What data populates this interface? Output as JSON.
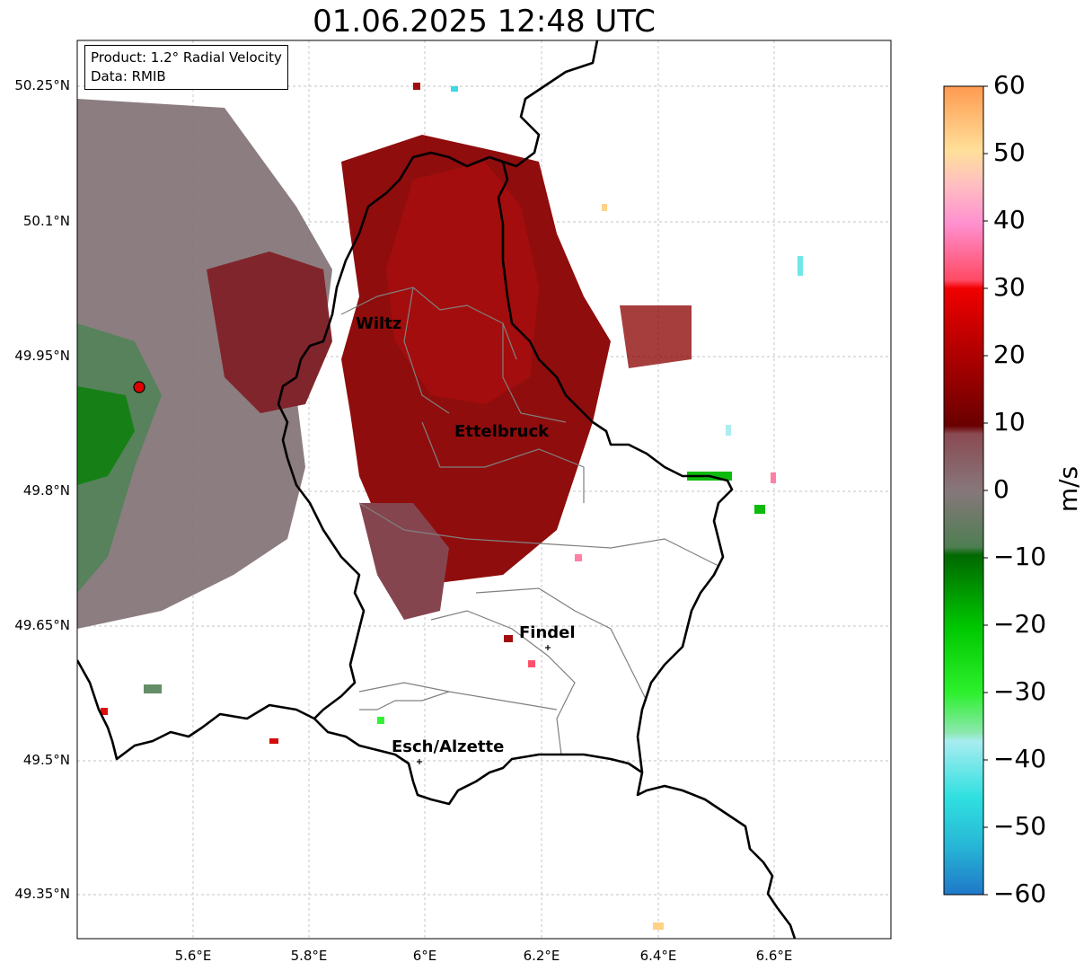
{
  "title": "01.06.2025 12:48 UTC",
  "info": {
    "product": "Product: 1.2° Radial Velocity",
    "data": "Data: RMIB"
  },
  "axes": {
    "lat_labels": [
      "50.25°N",
      "50.1°N",
      "49.95°N",
      "49.8°N",
      "49.65°N",
      "49.5°N",
      "49.35°N"
    ],
    "lon_labels": [
      "5.6°E",
      "5.8°E",
      "6°E",
      "6.2°E",
      "6.4°E",
      "6.6°E"
    ]
  },
  "colorbar": {
    "unit": "m/s",
    "ticks": [
      "60",
      "50",
      "40",
      "30",
      "20",
      "10",
      "0",
      "−10",
      "−20",
      "−30",
      "−40",
      "−50",
      "−60"
    ],
    "range": [
      -60,
      60
    ],
    "colors": [
      "#1f78c8",
      "#27b6d6",
      "#2fe0e0",
      "#66e6e6",
      "#a8ecf0",
      "#8de8b0",
      "#2cf02c",
      "#00c800",
      "#008c00",
      "#5c8860",
      "#87777b",
      "#7a3f46",
      "#7a0000",
      "#c00000",
      "#f00000",
      "#ff5a78",
      "#ff90c8",
      "#ffb4c8",
      "#ffdc96",
      "#ffa050"
    ]
  },
  "cities": [
    {
      "name": "Wiltz",
      "marker": false
    },
    {
      "name": "Ettelbruck",
      "marker": false
    },
    {
      "name": "Findel",
      "marker": true
    },
    {
      "name": "Esch/Alzette",
      "marker": true
    }
  ],
  "radar_site": {
    "marker": "red-dot"
  }
}
